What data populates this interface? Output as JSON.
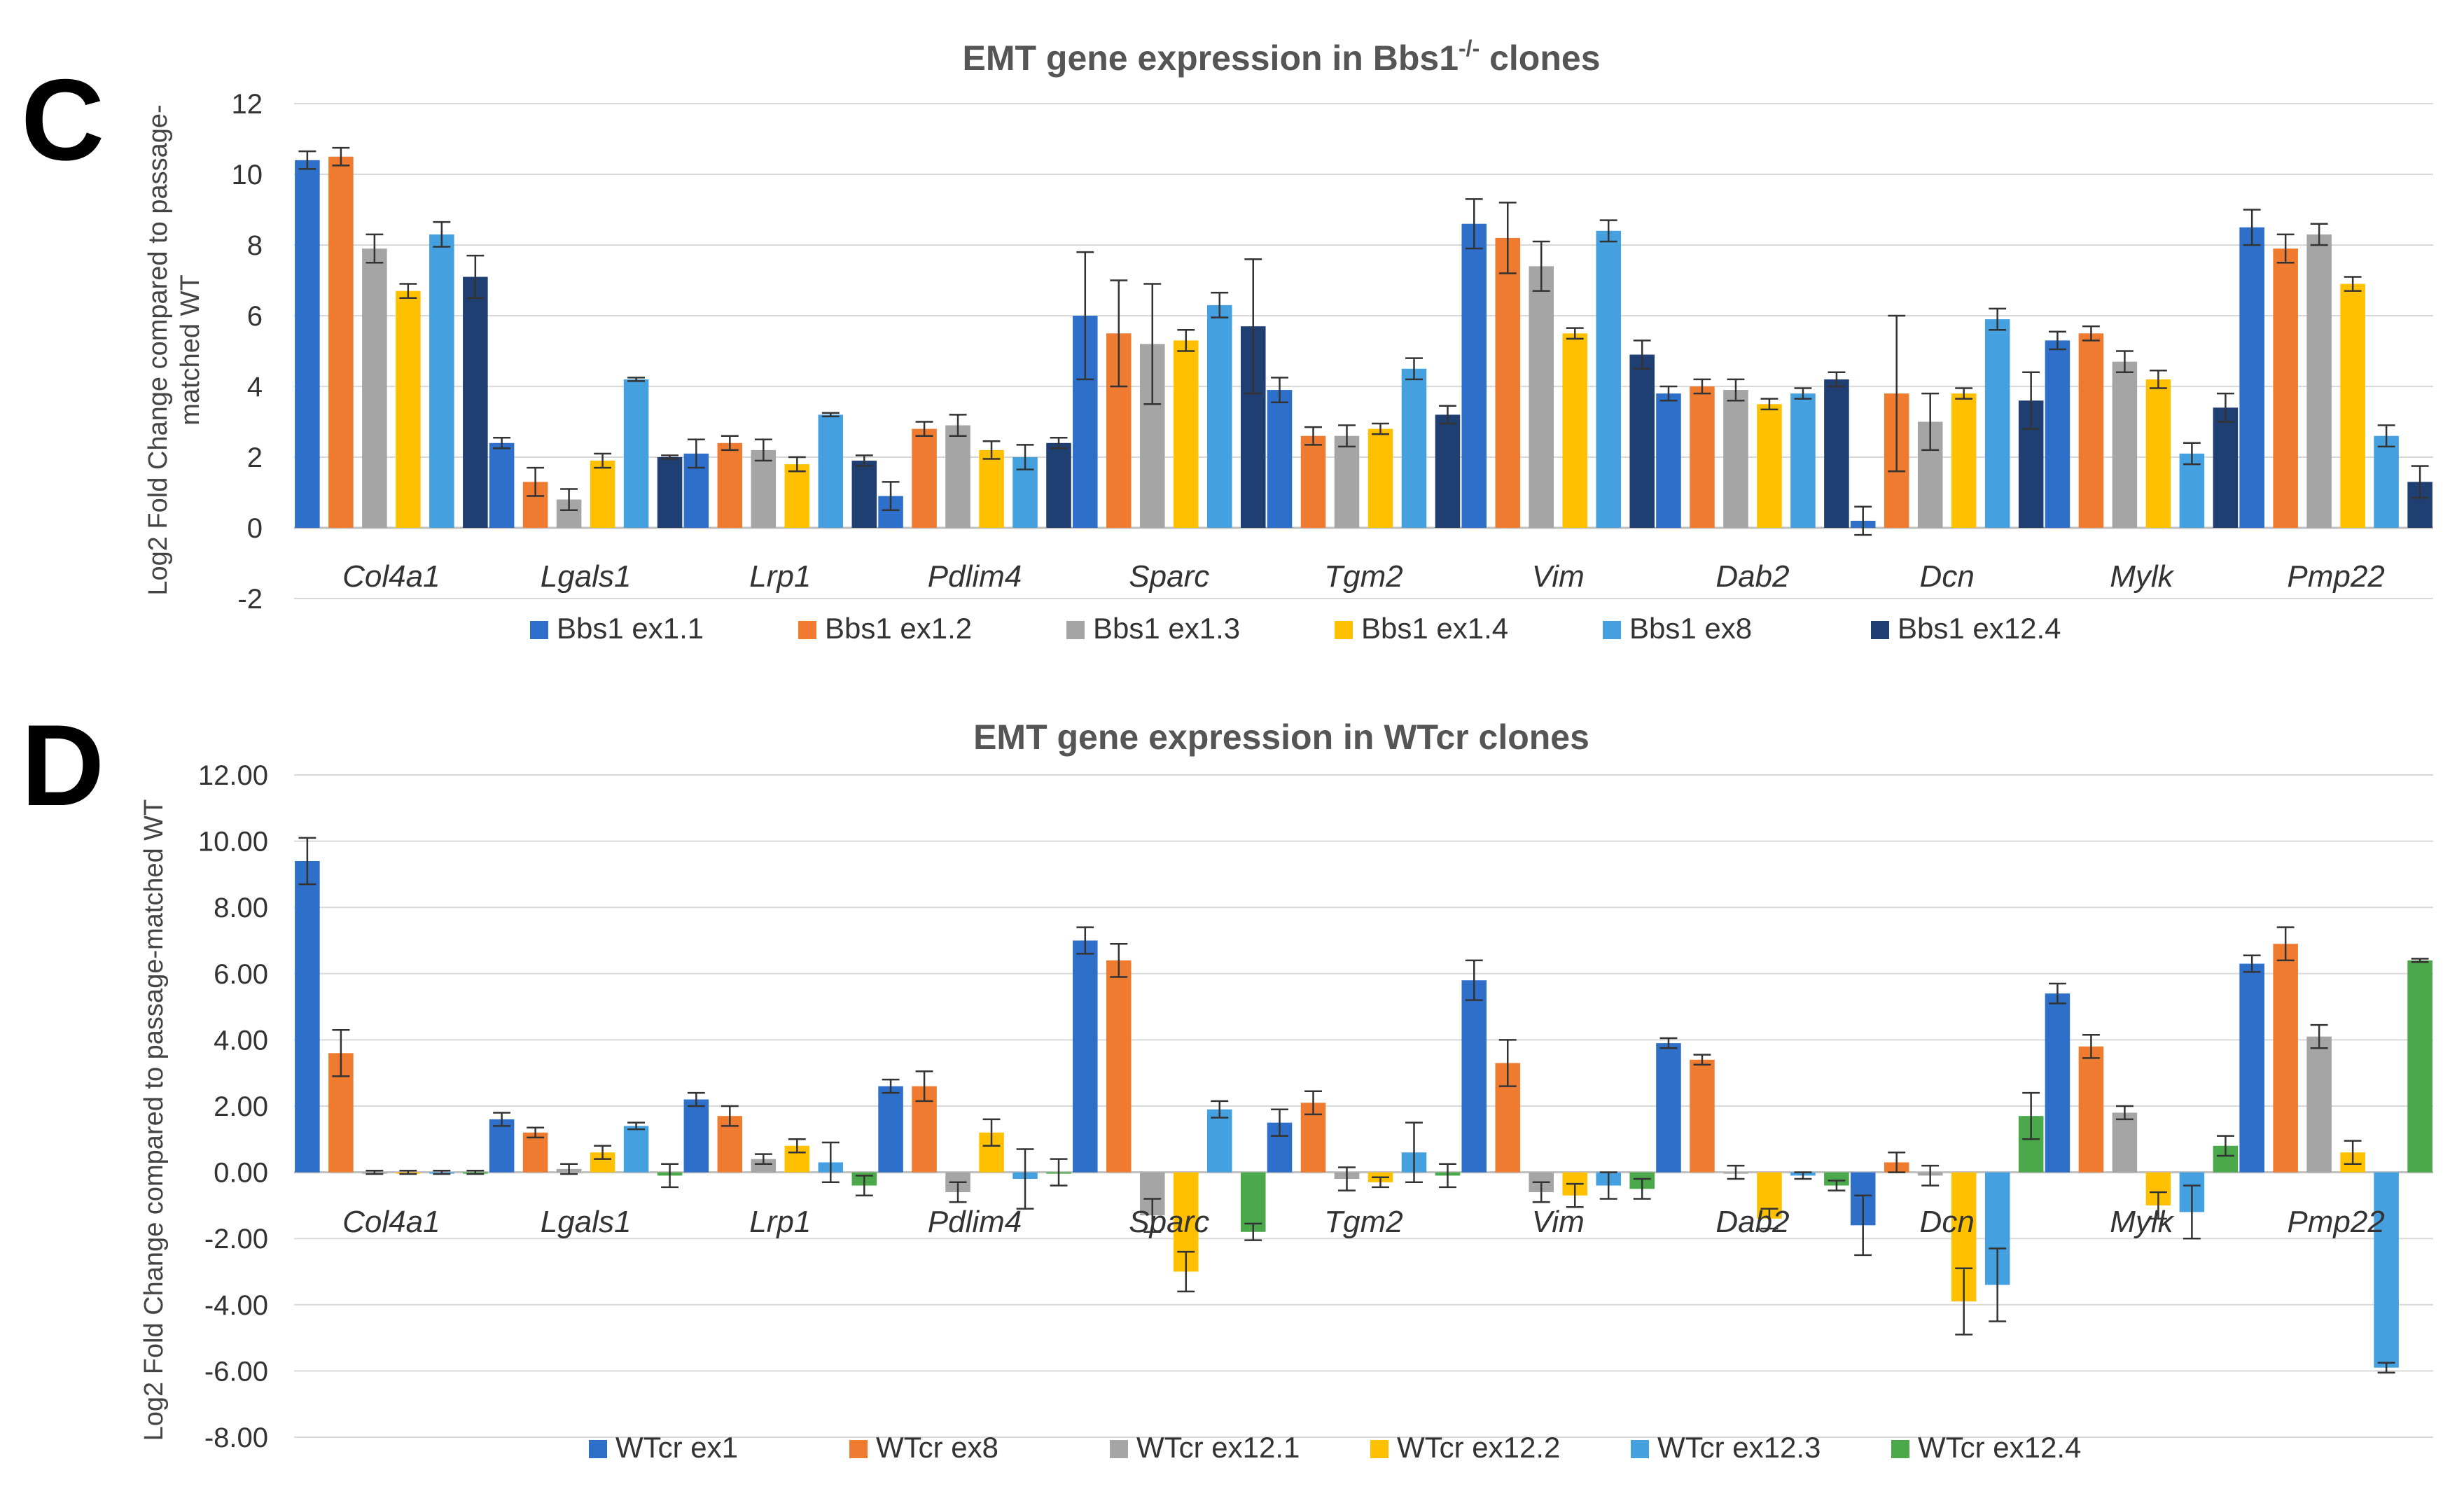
{
  "panels": [
    {
      "letter": "C",
      "chart_data": {
        "type": "bar",
        "title": "EMT gene expression in Bbs1",
        "title_superscript": "-/-",
        "title_suffix": " clones",
        "xlabel": "",
        "ylabel_lines": [
          "Log2 Fold Change compared to passage-",
          "matched WT"
        ],
        "ylim": [
          -2,
          12
        ],
        "yticks": [
          "12",
          "10",
          "8",
          "6",
          "4",
          "2",
          "0",
          "-2"
        ],
        "ytick_values": [
          12,
          10,
          8,
          6,
          4,
          2,
          0,
          -2
        ],
        "categories": [
          "Col4a1",
          "Lgals1",
          "Lrp1",
          "Pdlim4",
          "Sparc",
          "Tgm2",
          "Vim",
          "Dab2",
          "Dcn",
          "Mylk",
          "Pmp22"
        ],
        "series": [
          {
            "name": "Bbs1 ex1.1",
            "color": "#2e6fc9",
            "values": [
              10.4,
              2.4,
              2.1,
              0.9,
              6.0,
              3.9,
              8.6,
              3.8,
              0.2,
              5.3,
              8.5
            ],
            "errors": [
              0.25,
              0.15,
              0.4,
              0.4,
              1.8,
              0.35,
              0.7,
              0.2,
              0.4,
              0.25,
              0.5
            ]
          },
          {
            "name": "Bbs1 ex1.2",
            "color": "#ef7b31",
            "values": [
              10.5,
              1.3,
              2.4,
              2.8,
              5.5,
              2.6,
              8.2,
              4.0,
              3.8,
              5.5,
              7.9
            ],
            "errors": [
              0.25,
              0.4,
              0.2,
              0.2,
              1.5,
              0.25,
              1.0,
              0.2,
              2.2,
              0.2,
              0.4
            ]
          },
          {
            "name": "Bbs1 ex1.3",
            "color": "#a5a5a5",
            "values": [
              7.9,
              0.8,
              2.2,
              2.9,
              5.2,
              2.6,
              7.4,
              3.9,
              3.0,
              4.7,
              8.3
            ],
            "errors": [
              0.4,
              0.3,
              0.3,
              0.3,
              1.7,
              0.3,
              0.7,
              0.3,
              0.8,
              0.3,
              0.3
            ]
          },
          {
            "name": "Bbs1 ex1.4",
            "color": "#ffc000",
            "values": [
              6.7,
              1.9,
              1.8,
              2.2,
              5.3,
              2.8,
              5.5,
              3.5,
              3.8,
              4.2,
              6.9
            ],
            "errors": [
              0.2,
              0.2,
              0.2,
              0.25,
              0.3,
              0.15,
              0.15,
              0.15,
              0.15,
              0.25,
              0.2
            ]
          },
          {
            "name": "Bbs1 ex8",
            "color": "#45a0e0",
            "values": [
              8.3,
              4.2,
              3.2,
              2.0,
              6.3,
              4.5,
              8.4,
              3.8,
              5.9,
              2.1,
              2.6
            ],
            "errors": [
              0.35,
              0.05,
              0.05,
              0.35,
              0.35,
              0.3,
              0.3,
              0.15,
              0.3,
              0.3,
              0.3
            ]
          },
          {
            "name": "Bbs1 ex12.4",
            "color": "#1f3f73",
            "values": [
              7.1,
              2.0,
              1.9,
              2.4,
              5.7,
              3.2,
              4.9,
              4.2,
              3.6,
              3.4,
              1.3
            ],
            "errors": [
              0.6,
              0.05,
              0.15,
              0.15,
              1.9,
              0.25,
              0.4,
              0.2,
              0.8,
              0.4,
              0.45
            ]
          }
        ],
        "grid": true,
        "legend": "bottom"
      }
    },
    {
      "letter": "D",
      "chart_data": {
        "type": "bar",
        "title": "EMT gene expression in WTcr clones",
        "xlabel": "",
        "ylabel_lines": [
          "Log2 Fold Change compared to passage-matched WT"
        ],
        "ylim": [
          -8,
          12
        ],
        "yticks": [
          "12.00",
          "10.00",
          "8.00",
          "6.00",
          "4.00",
          "2.00",
          "0.00",
          "-2.00",
          "-4.00",
          "-6.00",
          "-8.00"
        ],
        "ytick_values": [
          12,
          10,
          8,
          6,
          4,
          2,
          0,
          -2,
          -4,
          -6,
          -8
        ],
        "categories": [
          "Col4a1",
          "Lgals1",
          "Lrp1",
          "Pdlim4",
          "Sparc",
          "Tgm2",
          "Vim",
          "Dab2",
          "Dcn",
          "Mylk",
          "Pmp22"
        ],
        "series": [
          {
            "name": "WTcr ex1",
            "color": "#2e6fc9",
            "values": [
              9.4,
              1.6,
              2.2,
              2.6,
              7.0,
              1.5,
              5.8,
              3.9,
              -1.6,
              5.4,
              6.3
            ],
            "errors": [
              0.7,
              0.2,
              0.2,
              0.2,
              0.4,
              0.4,
              0.6,
              0.15,
              0.9,
              0.3,
              0.25
            ]
          },
          {
            "name": "WTcr ex8",
            "color": "#ef7b31",
            "values": [
              3.6,
              1.2,
              1.7,
              2.6,
              6.4,
              2.1,
              3.3,
              3.4,
              0.3,
              3.8,
              6.9
            ],
            "errors": [
              0.7,
              0.15,
              0.3,
              0.45,
              0.5,
              0.35,
              0.7,
              0.15,
              0.3,
              0.35,
              0.5
            ]
          },
          {
            "name": "WTcr ex12.1",
            "color": "#a5a5a5",
            "values": [
              0.0,
              0.1,
              0.4,
              -0.6,
              -1.3,
              -0.2,
              -0.6,
              0.0,
              -0.1,
              1.8,
              4.1
            ],
            "errors": [
              0.05,
              0.15,
              0.15,
              0.3,
              0.5,
              0.35,
              0.3,
              0.2,
              0.3,
              0.2,
              0.35
            ]
          },
          {
            "name": "WTcr ex12.2",
            "color": "#ffc000",
            "values": [
              0.0,
              0.6,
              0.8,
              1.2,
              -3.0,
              -0.3,
              -0.7,
              -1.4,
              -3.9,
              -1.0,
              0.6
            ],
            "errors": [
              0.05,
              0.2,
              0.2,
              0.4,
              0.6,
              0.15,
              0.35,
              0.3,
              1.0,
              0.4,
              0.35
            ]
          },
          {
            "name": "WTcr ex12.3",
            "color": "#45a0e0",
            "values": [
              0.0,
              1.4,
              0.3,
              -0.2,
              1.9,
              0.6,
              -0.4,
              -0.1,
              -3.4,
              -1.2,
              -5.9
            ],
            "errors": [
              0.05,
              0.1,
              0.6,
              0.9,
              0.25,
              0.9,
              0.4,
              0.1,
              1.1,
              0.8,
              0.15
            ]
          },
          {
            "name": "WTcr ex12.4",
            "color": "#4ba84b",
            "values": [
              0.0,
              -0.1,
              -0.4,
              0.0,
              -1.8,
              -0.1,
              -0.5,
              -0.4,
              1.7,
              0.8,
              6.4
            ],
            "errors": [
              0.05,
              0.35,
              0.3,
              0.4,
              0.25,
              0.35,
              0.3,
              0.15,
              0.7,
              0.3,
              0.05
            ]
          }
        ],
        "grid": true,
        "legend": "bottom"
      }
    }
  ]
}
